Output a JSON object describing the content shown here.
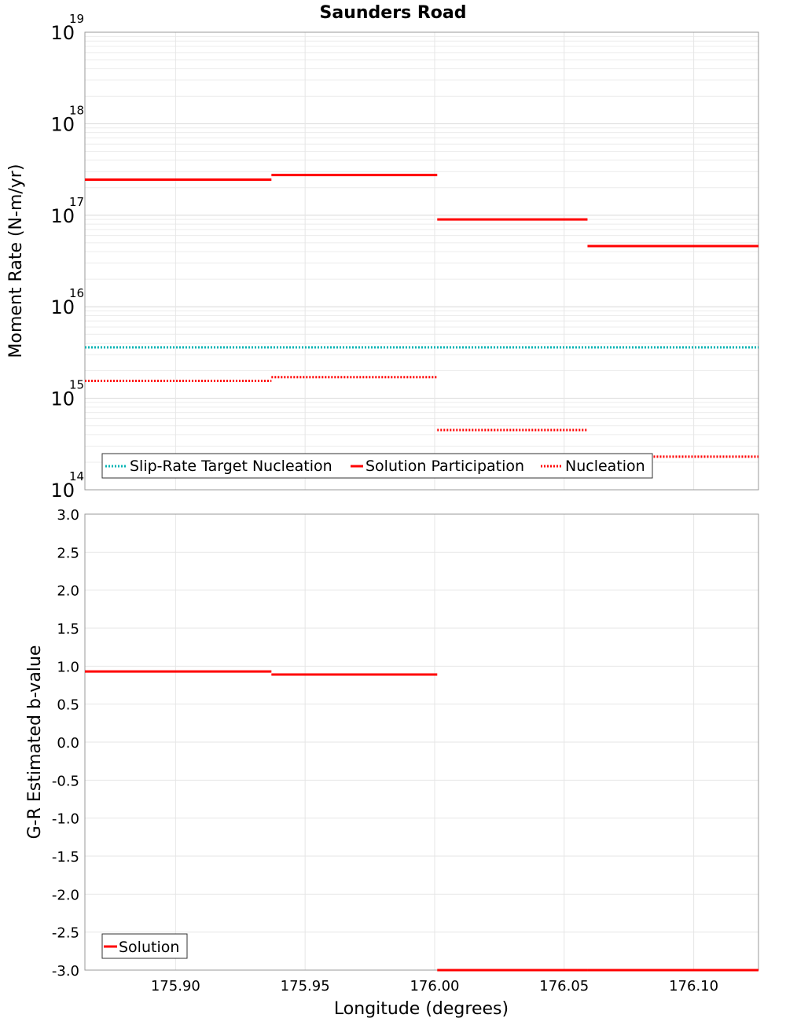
{
  "chart_data": [
    {
      "type": "line",
      "title": "Saunders Road",
      "ylabel": "Moment Rate (N-m/yr)",
      "xlabel": "",
      "yscale": "log",
      "ylim": [
        100000000000000.0,
        1e+19
      ],
      "xlim": [
        175.865,
        176.125
      ],
      "grid": true,
      "y_tick_bases": [
        "10",
        "10",
        "10",
        "10",
        "10",
        "10"
      ],
      "y_tick_exponents": [
        "14",
        "15",
        "16",
        "17",
        "18",
        "19"
      ],
      "y_tick_values": [
        100000000000000.0,
        1000000000000000.0,
        1e+16,
        1e+17,
        1e+18,
        1e+19
      ],
      "x_ticks": [
        175.9,
        175.95,
        176.0,
        176.05,
        176.1
      ],
      "legend": {
        "placement": "bottom-left",
        "entries": [
          "Slip-Rate Target Nucleation",
          "Solution Participation",
          "Nucleation"
        ]
      },
      "series": [
        {
          "name": "Slip-Rate Target Nucleation",
          "color": "#00b4b4",
          "style": "dotted",
          "segments": [
            [
              175.865,
              176.125,
              3600000000000000.0
            ]
          ]
        },
        {
          "name": "Solution Participation",
          "color": "#ff0000",
          "style": "solid",
          "segments": [
            [
              175.865,
              175.937,
              2.45e+17
            ],
            [
              175.937,
              176.001,
              2.75e+17
            ],
            [
              176.001,
              176.059,
              9e+16
            ],
            [
              176.059,
              176.125,
              4.6e+16
            ]
          ]
        },
        {
          "name": "Nucleation",
          "color": "#ff0000",
          "style": "dotted",
          "segments": [
            [
              175.865,
              175.937,
              1550000000000000.0
            ],
            [
              175.937,
              176.001,
              1700000000000000.0
            ],
            [
              176.001,
              176.059,
              450000000000000.0
            ],
            [
              176.059,
              176.125,
              230000000000000.0
            ]
          ]
        }
      ]
    },
    {
      "type": "line",
      "title": "",
      "ylabel": "G-R Estimated b-value",
      "xlabel": "Longitude (degrees)",
      "ylim": [
        -3.0,
        3.0
      ],
      "xlim": [
        175.865,
        176.125
      ],
      "grid": true,
      "y_ticks": [
        "3.0",
        "2.5",
        "2.0",
        "1.5",
        "1.0",
        "0.5",
        "0.0",
        "-0.5",
        "-1.0",
        "-1.5",
        "-2.0",
        "-2.5",
        "-3.0"
      ],
      "x_ticks": [
        "175.90",
        "175.95",
        "176.00",
        "176.05",
        "176.10"
      ],
      "legend": {
        "placement": "bottom-left",
        "entries": [
          "Solution"
        ]
      },
      "series": [
        {
          "name": "Solution",
          "color": "#ff0000",
          "style": "solid",
          "segments": [
            [
              175.865,
              175.937,
              0.93
            ],
            [
              175.937,
              176.001,
              0.89
            ],
            [
              176.001,
              176.059,
              -3.0
            ],
            [
              176.059,
              176.125,
              -3.0
            ]
          ]
        }
      ]
    }
  ]
}
